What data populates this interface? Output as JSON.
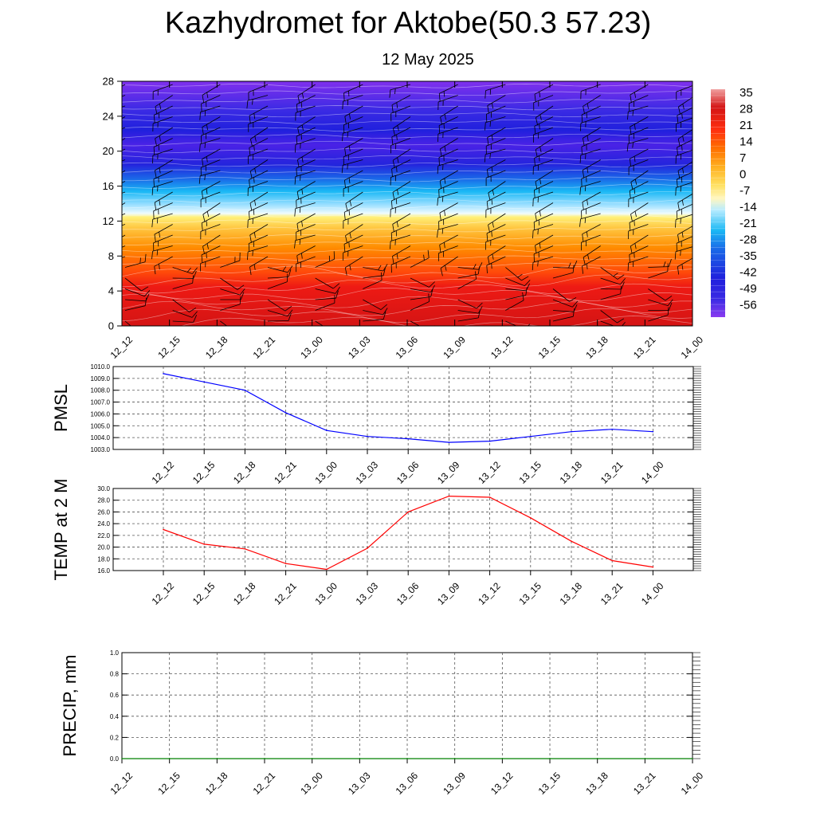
{
  "header": {
    "title": "Kazhydromet for Aktobe(50.3 57.23)",
    "subtitle": "12 May 2025"
  },
  "chart_data": [
    {
      "type": "heatmap",
      "title": "",
      "xlabel": "",
      "ylabel": "",
      "x": [
        "12_12",
        "12_15",
        "12_18",
        "12_21",
        "13_00",
        "13_03",
        "13_06",
        "13_09",
        "13_12",
        "13_15",
        "13_18",
        "13_21",
        "14_00"
      ],
      "ylim": [
        0,
        28
      ],
      "yticks": [
        0,
        4,
        8,
        12,
        16,
        20,
        24,
        28
      ],
      "colorbar_labels": [
        "35",
        "28",
        "21",
        "14",
        "7",
        "0",
        "-7",
        "-14",
        "-21",
        "-28",
        "-35",
        "-42",
        "-49",
        "-56"
      ],
      "colorbar_range": [
        -63,
        39
      ],
      "colors": {
        "hot": "#d41414",
        "orange": "#ff8c00",
        "yellow": "#fff07a",
        "pale": "#d8f4ff",
        "cyan": "#1ab8f5",
        "blue": "#2424dd",
        "violet": "#8030ee"
      },
      "wind_barbs": true
    },
    {
      "type": "line",
      "ylabel": "PMSL",
      "x": [
        "12_12",
        "12_15",
        "12_18",
        "12_21",
        "13_00",
        "13_03",
        "13_06",
        "13_09",
        "13_12",
        "13_15",
        "13_18",
        "13_21",
        "14_00"
      ],
      "values": [
        1009.4,
        1008.7,
        1008.0,
        1006.1,
        1004.6,
        1004.1,
        1003.9,
        1003.6,
        1003.7,
        1004.1,
        1004.5,
        1004.7,
        1004.5
      ],
      "ylim": [
        1003.0,
        1010.0
      ],
      "ytick_labels": [
        "1010.0",
        "1009.0",
        "1008.0",
        "1007.0",
        "1006.0",
        "1005.0",
        "1004.0",
        "1003.0"
      ],
      "color": "#0000ff",
      "grid": true
    },
    {
      "type": "line",
      "ylabel": "TEMP at 2 M",
      "x": [
        "12_12",
        "12_15",
        "12_18",
        "12_21",
        "13_00",
        "13_03",
        "13_06",
        "13_09",
        "13_12",
        "13_15",
        "13_18",
        "13_21",
        "14_00"
      ],
      "values": [
        23.0,
        20.5,
        19.7,
        17.2,
        16.2,
        19.8,
        26.0,
        28.7,
        28.5,
        25.0,
        21.0,
        17.7,
        16.6
      ],
      "ylim": [
        16.0,
        30.0
      ],
      "ytick_labels": [
        "30.0",
        "28.0",
        "26.0",
        "24.0",
        "22.0",
        "20.0",
        "18.0",
        "16.0"
      ],
      "color": "#ff0000",
      "grid": true
    },
    {
      "type": "line",
      "ylabel": "PRECIP, mm",
      "x": [
        "12_12",
        "12_15",
        "12_18",
        "12_21",
        "13_00",
        "13_03",
        "13_06",
        "13_09",
        "13_12",
        "13_15",
        "13_18",
        "13_21",
        "14_00"
      ],
      "values": [
        0,
        0,
        0,
        0,
        0,
        0,
        0,
        0,
        0,
        0,
        0,
        0,
        0
      ],
      "ylim": [
        0,
        1
      ],
      "ytick_labels": [
        "1.0",
        "0.8",
        "0.6",
        "0.4",
        "0.2",
        "0.0"
      ],
      "color": "#008000",
      "grid": true
    }
  ]
}
